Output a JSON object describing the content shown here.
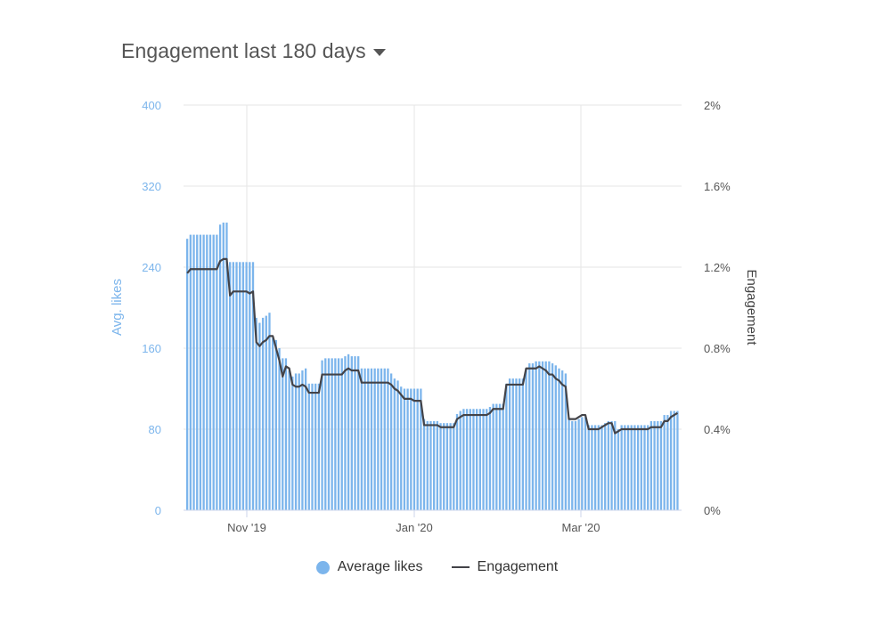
{
  "header": {
    "title": "Engagement last 180 days"
  },
  "legend": {
    "items": [
      {
        "label": "Average likes",
        "color": "#7cb5ec"
      },
      {
        "label": "Engagement",
        "color": "#434348"
      }
    ]
  },
  "chart_data": {
    "type": "bar",
    "title": "Engagement last 180 days",
    "y_left": {
      "label": "Avg. likes",
      "range": [
        0,
        400
      ],
      "ticks": [
        "0",
        "80",
        "160",
        "240",
        "320",
        "400"
      ],
      "color": "#7cb5ec"
    },
    "y_right": {
      "label": "Engagement",
      "range": [
        0,
        2
      ],
      "ticks": [
        "0%",
        "0.4%",
        "0.8%",
        "1.2%",
        "1.6%",
        "2%"
      ]
    },
    "x_ticks": [
      "Nov '19",
      "Jan '20",
      "Mar '20"
    ],
    "grid": true,
    "legend_position": "bottom",
    "series": [
      {
        "name": "Average likes",
        "type": "bar",
        "color": "#7cb5ec",
        "values": [
          268,
          272,
          272,
          272,
          272,
          272,
          272,
          272,
          272,
          272,
          282,
          284,
          284,
          245,
          245,
          245,
          245,
          245,
          245,
          245,
          245,
          190,
          185,
          190,
          192,
          195,
          170,
          168,
          160,
          150,
          150,
          138,
          132,
          135,
          135,
          138,
          140,
          125,
          125,
          125,
          125,
          148,
          150,
          150,
          150,
          150,
          150,
          150,
          152,
          154,
          152,
          152,
          152,
          140,
          140,
          140,
          140,
          140,
          140,
          140,
          140,
          140,
          135,
          130,
          128,
          122,
          120,
          120,
          120,
          120,
          120,
          120,
          90,
          88,
          88,
          88,
          88,
          86,
          86,
          86,
          86,
          86,
          95,
          98,
          100,
          100,
          100,
          100,
          100,
          100,
          100,
          100,
          102,
          105,
          105,
          105,
          105,
          125,
          130,
          130,
          130,
          130,
          130,
          140,
          145,
          145,
          147,
          147,
          147,
          147,
          147,
          145,
          143,
          140,
          138,
          135,
          90,
          88,
          88,
          90,
          92,
          92,
          84,
          84,
          84,
          84,
          84,
          86,
          88,
          88,
          88,
          80,
          84,
          84,
          84,
          84,
          84,
          84,
          84,
          84,
          84,
          88,
          88,
          88,
          88,
          94,
          94,
          98,
          98,
          98
        ]
      },
      {
        "name": "Engagement",
        "type": "line",
        "color": "#434348",
        "values": [
          1.17,
          1.19,
          1.19,
          1.19,
          1.19,
          1.19,
          1.19,
          1.19,
          1.19,
          1.19,
          1.23,
          1.24,
          1.24,
          1.06,
          1.08,
          1.08,
          1.08,
          1.08,
          1.08,
          1.07,
          1.08,
          0.83,
          0.81,
          0.83,
          0.84,
          0.86,
          0.86,
          0.8,
          0.74,
          0.66,
          0.71,
          0.7,
          0.62,
          0.61,
          0.61,
          0.62,
          0.61,
          0.58,
          0.58,
          0.58,
          0.58,
          0.67,
          0.67,
          0.67,
          0.67,
          0.67,
          0.67,
          0.67,
          0.69,
          0.7,
          0.69,
          0.69,
          0.69,
          0.63,
          0.63,
          0.63,
          0.63,
          0.63,
          0.63,
          0.63,
          0.63,
          0.63,
          0.62,
          0.6,
          0.59,
          0.57,
          0.55,
          0.55,
          0.55,
          0.54,
          0.54,
          0.54,
          0.42,
          0.42,
          0.42,
          0.42,
          0.42,
          0.41,
          0.41,
          0.41,
          0.41,
          0.41,
          0.45,
          0.46,
          0.47,
          0.47,
          0.47,
          0.47,
          0.47,
          0.47,
          0.47,
          0.47,
          0.48,
          0.5,
          0.5,
          0.5,
          0.5,
          0.62,
          0.62,
          0.62,
          0.62,
          0.62,
          0.62,
          0.7,
          0.7,
          0.7,
          0.7,
          0.71,
          0.7,
          0.69,
          0.67,
          0.67,
          0.65,
          0.64,
          0.62,
          0.61,
          0.45,
          0.45,
          0.45,
          0.46,
          0.47,
          0.47,
          0.4,
          0.4,
          0.4,
          0.4,
          0.41,
          0.42,
          0.43,
          0.43,
          0.38,
          0.39,
          0.4,
          0.4,
          0.4,
          0.4,
          0.4,
          0.4,
          0.4,
          0.4,
          0.4,
          0.41,
          0.41,
          0.41,
          0.41,
          0.44,
          0.44,
          0.46,
          0.47,
          0.48
        ]
      }
    ]
  }
}
